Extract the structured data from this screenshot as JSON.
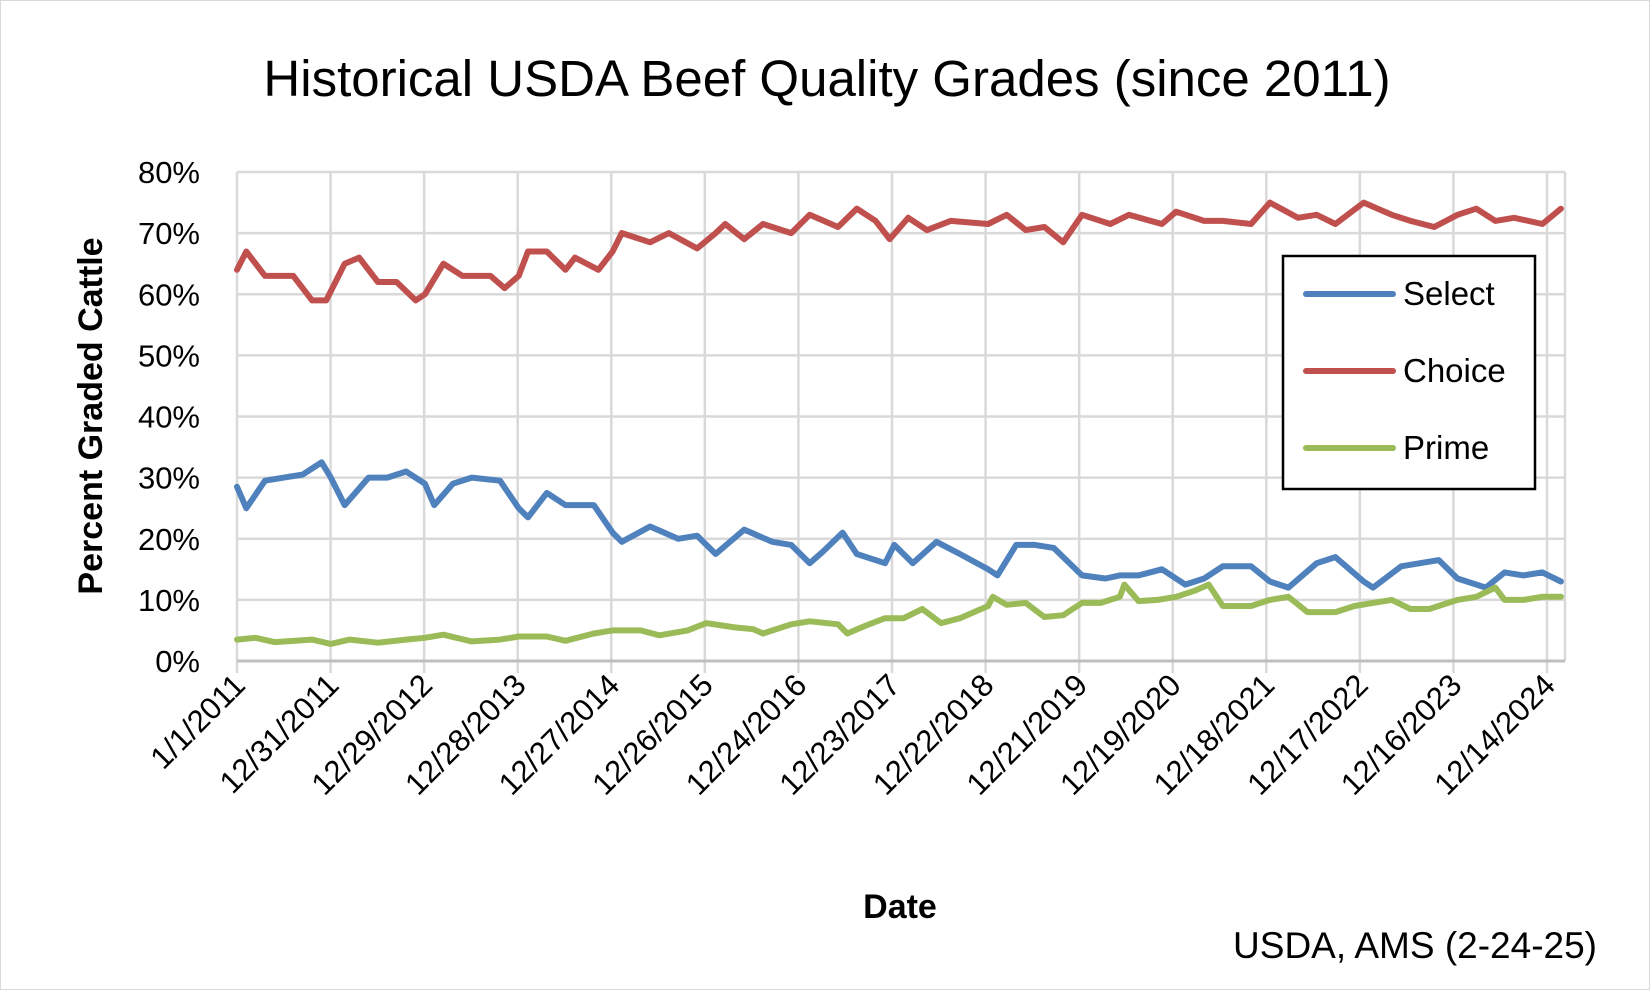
{
  "chart_data": {
    "type": "line",
    "title": "Historical USDA Beef Quality Grades (since 2011)",
    "xlabel": "Date",
    "ylabel": "Percent Graded Cattle",
    "source_note": "USDA, AMS (2-24-25)",
    "ylim": [
      0,
      80
    ],
    "xlim": [
      "2011-01-01",
      "2025-02-22"
    ],
    "y_tick_labels": [
      "0%",
      "10%",
      "20%",
      "30%",
      "40%",
      "50%",
      "60%",
      "70%",
      "80%"
    ],
    "y_ticks": [
      0,
      10,
      20,
      30,
      40,
      50,
      60,
      70,
      80
    ],
    "x_tick_labels": [
      "1/1/2011",
      "12/31/2011",
      "12/29/2012",
      "12/28/2013",
      "12/27/2014",
      "12/26/2015",
      "12/24/2016",
      "12/23/2017",
      "12/22/2018",
      "12/21/2019",
      "12/19/2020",
      "12/18/2021",
      "12/17/2022",
      "12/16/2023",
      "12/14/2024"
    ],
    "x_ticks": [
      "2011-01-01",
      "2011-12-31",
      "2012-12-29",
      "2013-12-28",
      "2014-12-27",
      "2015-12-26",
      "2016-12-24",
      "2017-12-23",
      "2018-12-22",
      "2019-12-21",
      "2020-12-19",
      "2021-12-18",
      "2022-12-17",
      "2023-12-16",
      "2024-12-14"
    ],
    "grid": true,
    "legend_placement": "right",
    "series": [
      {
        "name": "Select",
        "color": "#4f81bd",
        "points": [
          [
            "2011-01-01",
            28.5
          ],
          [
            "2011-02-06",
            25
          ],
          [
            "2011-04-20",
            29.5
          ],
          [
            "2011-07-02",
            30
          ],
          [
            "2011-09-13",
            30.5
          ],
          [
            "2011-11-26",
            32.5
          ],
          [
            "2012-01-01",
            30
          ],
          [
            "2012-02-24",
            25.5
          ],
          [
            "2012-05-27",
            30
          ],
          [
            "2012-08-08",
            30
          ],
          [
            "2012-10-20",
            31
          ],
          [
            "2013-01-01",
            29
          ],
          [
            "2013-02-06",
            25.5
          ],
          [
            "2013-04-20",
            29
          ],
          [
            "2013-07-02",
            30
          ],
          [
            "2013-10-20",
            29.5
          ],
          [
            "2014-01-01",
            25
          ],
          [
            "2014-02-06",
            23.5
          ],
          [
            "2014-04-20",
            27.5
          ],
          [
            "2014-07-02",
            25.5
          ],
          [
            "2014-10-20",
            25.5
          ],
          [
            "2015-01-01",
            21
          ],
          [
            "2015-02-06",
            19.5
          ],
          [
            "2015-05-27",
            22
          ],
          [
            "2015-09-13",
            20
          ],
          [
            "2015-11-26",
            20.5
          ],
          [
            "2016-02-06",
            17.5
          ],
          [
            "2016-05-27",
            21.5
          ],
          [
            "2016-09-13",
            19.5
          ],
          [
            "2016-11-26",
            19
          ],
          [
            "2017-02-06",
            16
          ],
          [
            "2017-04-01",
            18
          ],
          [
            "2017-06-14",
            21
          ],
          [
            "2017-08-08",
            17.5
          ],
          [
            "2017-11-26",
            16
          ],
          [
            "2018-01-01",
            19
          ],
          [
            "2018-03-14",
            16
          ],
          [
            "2018-06-14",
            19.5
          ],
          [
            "2018-09-13",
            17.5
          ],
          [
            "2019-01-01",
            15
          ],
          [
            "2019-02-06",
            14
          ],
          [
            "2019-04-20",
            19
          ],
          [
            "2019-07-02",
            19
          ],
          [
            "2019-09-13",
            18.5
          ],
          [
            "2020-01-01",
            14
          ],
          [
            "2020-04-01",
            13.5
          ],
          [
            "2020-05-27",
            14
          ],
          [
            "2020-08-08",
            14
          ],
          [
            "2020-11-07",
            15
          ],
          [
            "2021-02-06",
            12.5
          ],
          [
            "2021-04-20",
            13.5
          ],
          [
            "2021-07-02",
            15.5
          ],
          [
            "2021-10-20",
            15.5
          ],
          [
            "2022-01-01",
            13
          ],
          [
            "2022-03-14",
            12
          ],
          [
            "2022-07-02",
            16
          ],
          [
            "2022-09-13",
            17
          ],
          [
            "2023-01-01",
            13
          ],
          [
            "2023-02-06",
            12
          ],
          [
            "2023-05-27",
            15.5
          ],
          [
            "2023-08-08",
            16
          ],
          [
            "2023-10-20",
            16.5
          ],
          [
            "2024-01-01",
            13.5
          ],
          [
            "2024-04-20",
            12
          ],
          [
            "2024-07-02",
            14.5
          ],
          [
            "2024-09-13",
            14
          ],
          [
            "2024-11-26",
            14.5
          ],
          [
            "2025-02-06",
            13
          ]
        ]
      },
      {
        "name": "Choice",
        "color": "#c0504d",
        "points": [
          [
            "2011-01-01",
            64
          ],
          [
            "2011-02-06",
            67
          ],
          [
            "2011-04-20",
            63
          ],
          [
            "2011-08-08",
            63
          ],
          [
            "2011-10-20",
            59
          ],
          [
            "2011-12-14",
            59
          ],
          [
            "2012-02-24",
            65
          ],
          [
            "2012-04-20",
            66
          ],
          [
            "2012-07-02",
            62
          ],
          [
            "2012-09-13",
            62
          ],
          [
            "2012-11-26",
            59
          ],
          [
            "2013-01-01",
            60
          ],
          [
            "2013-03-14",
            65
          ],
          [
            "2013-05-27",
            63
          ],
          [
            "2013-09-13",
            63
          ],
          [
            "2013-11-07",
            61
          ],
          [
            "2014-01-01",
            63
          ],
          [
            "2014-02-06",
            67
          ],
          [
            "2014-04-20",
            67
          ],
          [
            "2014-07-02",
            64
          ],
          [
            "2014-08-08",
            66
          ],
          [
            "2014-11-07",
            64
          ],
          [
            "2015-01-01",
            67
          ],
          [
            "2015-02-06",
            70
          ],
          [
            "2015-05-27",
            68.5
          ],
          [
            "2015-08-08",
            70
          ],
          [
            "2015-11-26",
            67.5
          ],
          [
            "2016-02-06",
            70
          ],
          [
            "2016-03-14",
            71.5
          ],
          [
            "2016-05-27",
            69
          ],
          [
            "2016-08-08",
            71.5
          ],
          [
            "2016-11-26",
            70
          ],
          [
            "2017-02-06",
            73
          ],
          [
            "2017-05-27",
            71
          ],
          [
            "2017-08-08",
            74
          ],
          [
            "2017-10-20",
            72
          ],
          [
            "2017-12-14",
            69
          ],
          [
            "2018-02-24",
            72.5
          ],
          [
            "2018-05-08",
            70.5
          ],
          [
            "2018-08-08",
            72
          ],
          [
            "2019-01-01",
            71.5
          ],
          [
            "2019-03-14",
            73
          ],
          [
            "2019-05-27",
            70.5
          ],
          [
            "2019-08-08",
            71
          ],
          [
            "2019-10-20",
            68.5
          ],
          [
            "2020-01-01",
            73
          ],
          [
            "2020-04-20",
            71.5
          ],
          [
            "2020-07-02",
            73
          ],
          [
            "2020-11-07",
            71.5
          ],
          [
            "2021-01-01",
            73.5
          ],
          [
            "2021-04-20",
            72
          ],
          [
            "2021-07-02",
            72
          ],
          [
            "2021-10-20",
            71.5
          ],
          [
            "2022-01-01",
            75
          ],
          [
            "2022-04-20",
            72.5
          ],
          [
            "2022-07-02",
            73
          ],
          [
            "2022-09-13",
            71.5
          ],
          [
            "2023-01-01",
            75
          ],
          [
            "2023-04-20",
            73
          ],
          [
            "2023-07-02",
            72
          ],
          [
            "2023-10-02",
            71
          ],
          [
            "2024-01-01",
            73
          ],
          [
            "2024-03-14",
            74
          ],
          [
            "2024-05-27",
            72
          ],
          [
            "2024-08-08",
            72.5
          ],
          [
            "2024-11-26",
            71.5
          ],
          [
            "2025-02-06",
            74
          ]
        ]
      },
      {
        "name": "Prime",
        "color": "#9bbb59",
        "points": [
          [
            "2011-01-01",
            3.5
          ],
          [
            "2011-03-14",
            3.8
          ],
          [
            "2011-05-27",
            3.1
          ],
          [
            "2011-10-20",
            3.5
          ],
          [
            "2012-01-01",
            2.8
          ],
          [
            "2012-03-14",
            3.5
          ],
          [
            "2012-07-02",
            3
          ],
          [
            "2012-10-20",
            3.5
          ],
          [
            "2013-01-01",
            3.8
          ],
          [
            "2013-03-14",
            4.3
          ],
          [
            "2013-07-02",
            3.2
          ],
          [
            "2013-10-20",
            3.5
          ],
          [
            "2014-01-01",
            4
          ],
          [
            "2014-04-20",
            4
          ],
          [
            "2014-07-02",
            3.3
          ],
          [
            "2014-10-20",
            4.5
          ],
          [
            "2015-01-01",
            5
          ],
          [
            "2015-04-20",
            5
          ],
          [
            "2015-07-02",
            4.2
          ],
          [
            "2015-10-20",
            5
          ],
          [
            "2016-01-01",
            6.2
          ],
          [
            "2016-04-20",
            5.5
          ],
          [
            "2016-07-02",
            5.2
          ],
          [
            "2016-08-08",
            4.5
          ],
          [
            "2016-11-26",
            6
          ],
          [
            "2017-02-06",
            6.5
          ],
          [
            "2017-05-27",
            6
          ],
          [
            "2017-07-02",
            4.5
          ],
          [
            "2017-09-13",
            5.8
          ],
          [
            "2017-11-26",
            7
          ],
          [
            "2018-02-06",
            7
          ],
          [
            "2018-04-20",
            8.5
          ],
          [
            "2018-07-02",
            6.2
          ],
          [
            "2018-09-13",
            7
          ],
          [
            "2019-01-01",
            9
          ],
          [
            "2019-01-19",
            10.5
          ],
          [
            "2019-03-14",
            9.2
          ],
          [
            "2019-05-27",
            9.5
          ],
          [
            "2019-08-08",
            7.2
          ],
          [
            "2019-10-20",
            7.5
          ],
          [
            "2020-01-01",
            9.5
          ],
          [
            "2020-03-14",
            9.5
          ],
          [
            "2020-05-27",
            10.5
          ],
          [
            "2020-06-14",
            12.5
          ],
          [
            "2020-08-08",
            9.8
          ],
          [
            "2020-10-20",
            10
          ],
          [
            "2021-01-01",
            10.5
          ],
          [
            "2021-03-14",
            11.5
          ],
          [
            "2021-05-08",
            12.5
          ],
          [
            "2021-07-02",
            9
          ],
          [
            "2021-10-20",
            9
          ],
          [
            "2022-01-01",
            10
          ],
          [
            "2022-03-14",
            10.5
          ],
          [
            "2022-05-27",
            8
          ],
          [
            "2022-09-13",
            8
          ],
          [
            "2022-11-26",
            9
          ],
          [
            "2023-02-06",
            9.5
          ],
          [
            "2023-04-20",
            10
          ],
          [
            "2023-07-02",
            8.5
          ],
          [
            "2023-09-13",
            8.5
          ],
          [
            "2024-01-01",
            10
          ],
          [
            "2024-03-14",
            10.5
          ],
          [
            "2024-05-27",
            12
          ],
          [
            "2024-07-02",
            10
          ],
          [
            "2024-09-13",
            10
          ],
          [
            "2024-11-26",
            10.5
          ],
          [
            "2025-02-06",
            10.5
          ]
        ]
      }
    ]
  }
}
